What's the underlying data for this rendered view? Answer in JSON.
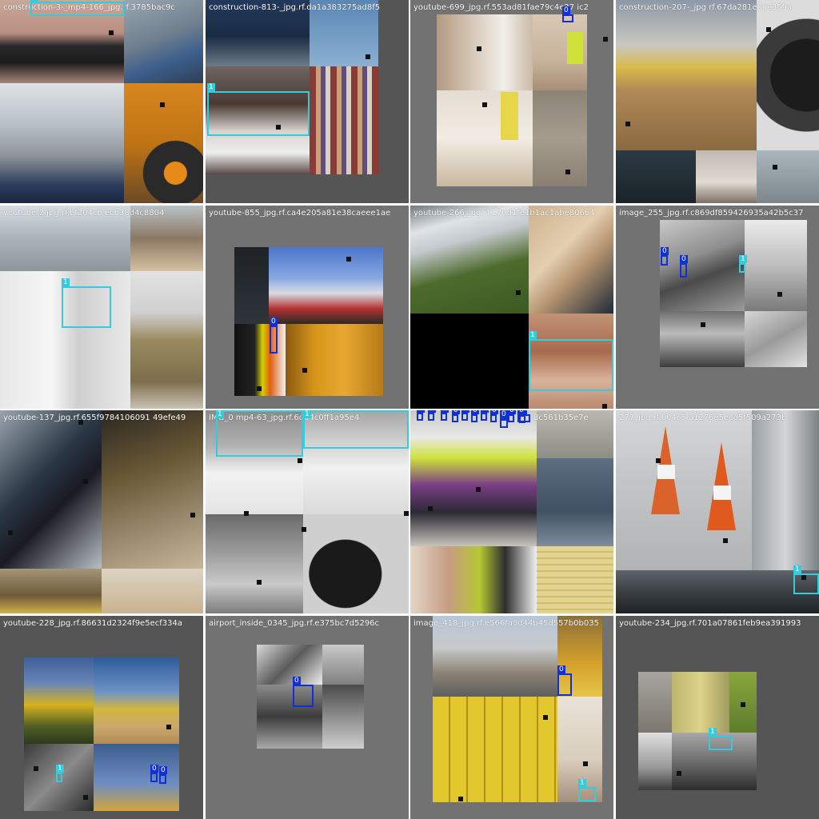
{
  "grid": {
    "tiles": [
      {
        "title": "construction-3-_mp4-166_jpg.rf.3785bac9c",
        "labels": [
          "1"
        ]
      },
      {
        "title": "construction-813-_jpg.rf.da1a383275ad8f5",
        "labels": [
          "1"
        ]
      },
      {
        "title": "youtube-699_jpg.rf.553ad81fae79c4e27 ic2",
        "labels": [
          "0"
        ]
      },
      {
        "title": "construction-207-_jpg.rf.67da281e0dc359a",
        "labels": []
      },
      {
        "title": "youtube-2  jpg.rf.bf204cb  ecb38d4c8804",
        "labels": [
          "1"
        ]
      },
      {
        "title": "youtube-855_jpg.rf.ca4e205a81e38caeee1ae",
        "labels": [
          "0"
        ]
      },
      {
        "title": "youtube-266_jpg.rf.170d1fe1b1ac1abe806b4",
        "labels": [
          "1"
        ]
      },
      {
        "title": "image_255_jpg.rf.c869df859426935a42b5c37",
        "labels": [
          "0",
          "0",
          "1"
        ]
      },
      {
        "title": "youtube-137_jpg.rf.655f9784106091 49efe49",
        "labels": []
      },
      {
        "title": "IMG_0    mp4-63_jpg.rf.6d04c0ff1a95e4",
        "labels": [
          "1",
          "1"
        ]
      },
      {
        "title": "          8c561b35e7e",
        "labels": [
          "0",
          "0",
          "0",
          "0",
          "0",
          "0",
          "0",
          "0",
          "0",
          "0",
          "0",
          "0",
          "0"
        ]
      },
      {
        "title": "277_jpg.rf.004c5    a1276e5eca5f509a273b",
        "labels": [
          "1"
        ]
      },
      {
        "title": "youtube-228_jpg.rf.86631d2324f9e5ecf334a",
        "labels": [
          "1",
          "0",
          "0"
        ]
      },
      {
        "title": "airport_inside_0345_jpg.rf.e375bc7d5296c",
        "labels": [
          "0"
        ]
      },
      {
        "title": "image_418_jpg.rf.e566fa0d44b45d557b0b035",
        "labels": [
          "0",
          "1"
        ]
      },
      {
        "title": "youtube-234_jpg.rf.701a07861feb9ea391993",
        "labels": [
          "1"
        ]
      }
    ]
  }
}
